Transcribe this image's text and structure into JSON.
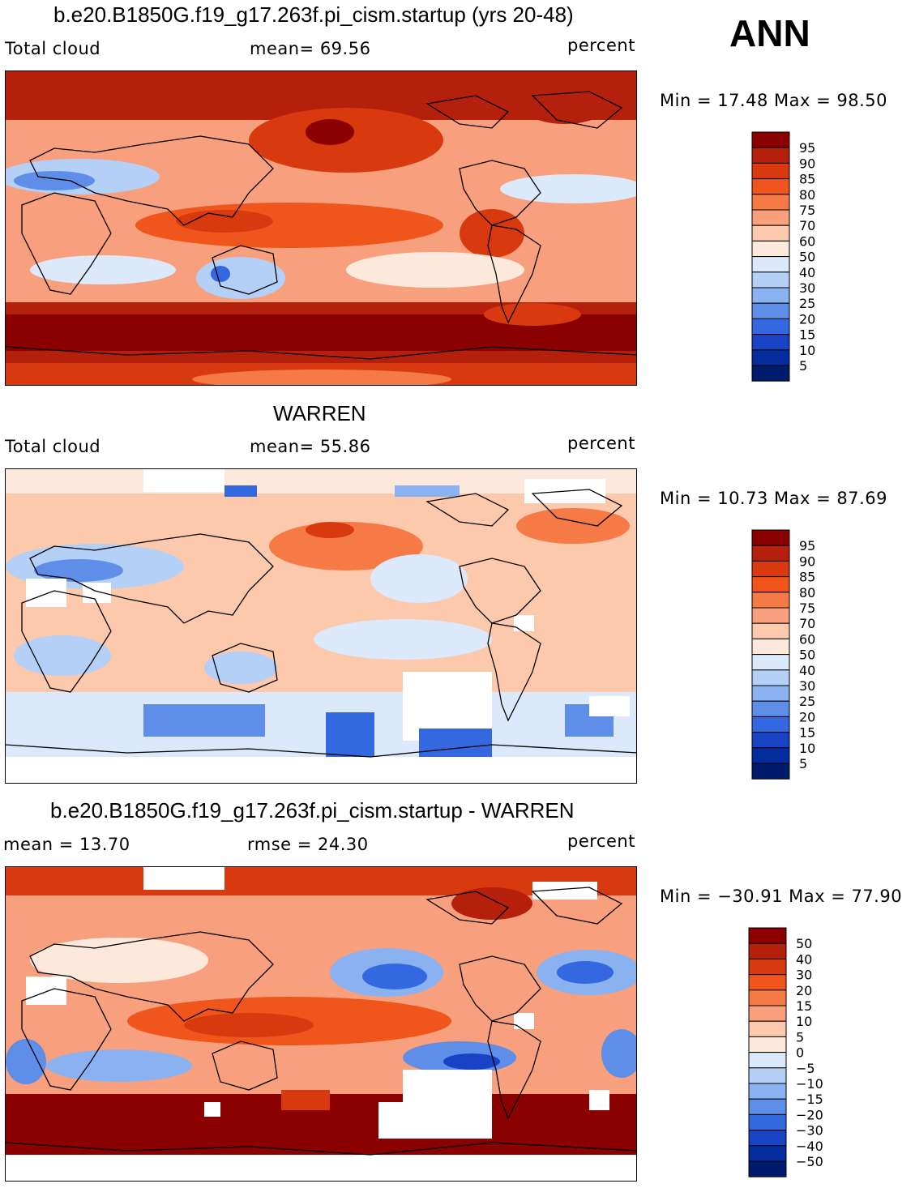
{
  "season": "ANN",
  "panels": [
    {
      "title": "b.e20.B1850G.f19_g17.263f.pi_cism.startup (yrs 20-48)",
      "left_label": "Total cloud",
      "mid_label": "mean=   69.56",
      "right_label": "percent",
      "minmax": "Min =   17.48 Max =   98.50",
      "colorbar_labels": [
        "95",
        "90",
        "85",
        "80",
        "75",
        "70",
        "60",
        "50",
        "40",
        "30",
        "25",
        "20",
        "15",
        "10",
        "5"
      ],
      "colorbar_colors": [
        "#8b0000",
        "#b5200c",
        "#d8390f",
        "#f0561b",
        "#f57a45",
        "#f8a07d",
        "#fcc9ad",
        "#fde9dc",
        "#dbe9fa",
        "#b4d0f6",
        "#8ab2f0",
        "#5e8ee8",
        "#3468e0",
        "#1743c4",
        "#052c9c",
        "#001a6e"
      ]
    },
    {
      "title": "WARREN",
      "left_label": "Total cloud",
      "mid_label": "mean=   55.86",
      "right_label": "percent",
      "minmax": "Min =   10.73 Max =   87.69",
      "colorbar_labels": [
        "95",
        "90",
        "85",
        "80",
        "75",
        "70",
        "60",
        "50",
        "40",
        "30",
        "25",
        "20",
        "15",
        "10",
        "5"
      ],
      "colorbar_colors": [
        "#8b0000",
        "#b5200c",
        "#d8390f",
        "#f0561b",
        "#f57a45",
        "#f8a07d",
        "#fcc9ad",
        "#fde9dc",
        "#dbe9fa",
        "#b4d0f6",
        "#8ab2f0",
        "#5e8ee8",
        "#3468e0",
        "#1743c4",
        "#052c9c",
        "#001a6e"
      ]
    },
    {
      "title": "b.e20.B1850G.f19_g17.263f.pi_cism.startup - WARREN",
      "left_label": "mean =   13.70",
      "mid_label": "rmse =   24.30",
      "right_label": "percent",
      "minmax": "Min = −30.91 Max =   77.90",
      "colorbar_labels": [
        "50",
        "40",
        "30",
        "20",
        "15",
        "10",
        "5",
        "0",
        "−5",
        "−10",
        "−15",
        "−20",
        "−30",
        "−40",
        "−50"
      ],
      "colorbar_colors": [
        "#8b0000",
        "#b5200c",
        "#d8390f",
        "#f0561b",
        "#f57a45",
        "#f8a07d",
        "#fcc9ad",
        "#fde9dc",
        "#dbe9fa",
        "#b4d0f6",
        "#8ab2f0",
        "#5e8ee8",
        "#3468e0",
        "#1743c4",
        "#052c9c",
        "#001a6e"
      ]
    }
  ]
}
